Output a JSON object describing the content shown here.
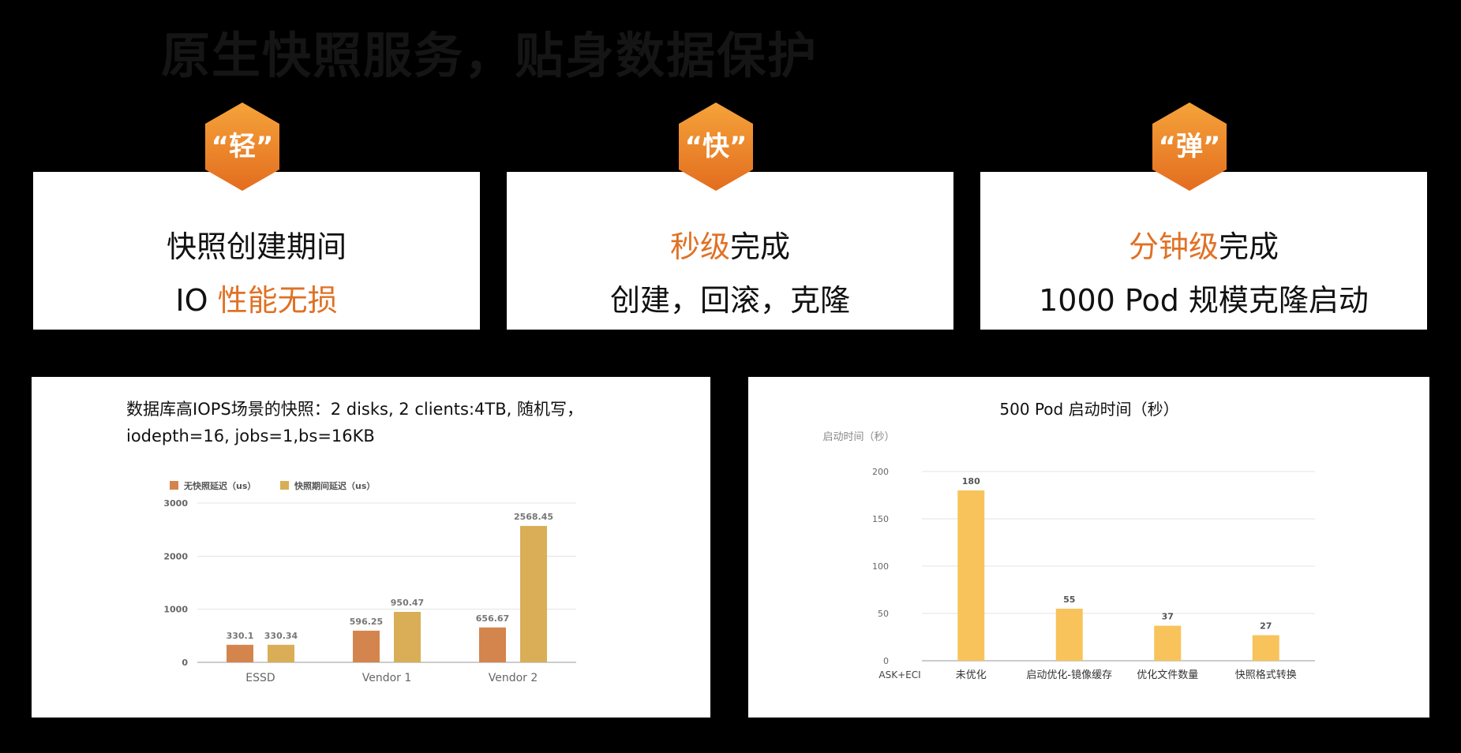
{
  "title": "原生快照服务，贴身数据保护",
  "colors": {
    "accent": "#e07125",
    "hex_top": "#f5a33a",
    "hex_bottom": "#e36d1f"
  },
  "cards": [
    {
      "badge": "“轻”",
      "line1": {
        "plain_before": "",
        "highlight": "",
        "plain_after": "快照创建期间"
      },
      "line2": {
        "plain_before": "IO ",
        "highlight": "性能无损",
        "plain_after": ""
      }
    },
    {
      "badge": "“快”",
      "line1": {
        "plain_before": "",
        "highlight": "秒级",
        "plain_after": "完成"
      },
      "line2": {
        "plain_before": "创建，回滚，克隆",
        "highlight": "",
        "plain_after": ""
      }
    },
    {
      "badge": "“弹”",
      "line1": {
        "plain_before": "",
        "highlight": "分钟级",
        "plain_after": "完成"
      },
      "line2": {
        "plain_before": "1000 Pod 规模克隆启动",
        "highlight": "",
        "plain_after": ""
      }
    }
  ],
  "chart_data": [
    {
      "type": "bar",
      "title": "数据库高IOPS场景的快照：2 disks, 2 clients:4TB, 随机写，",
      "subtitle": "iodepth=16, jobs=1,bs=16KB",
      "categories": [
        "ESSD",
        "Vendor 1",
        "Vendor 2"
      ],
      "series": [
        {
          "name": "无快照延迟（us）",
          "color": "#d4854d",
          "values": [
            330.1,
            596.25,
            656.67
          ]
        },
        {
          "name": "快照期间延迟（us）",
          "color": "#d9ae56",
          "values": [
            330.34,
            950.47,
            2568.45
          ]
        }
      ],
      "value_labels": [
        [
          "330.1",
          "596.25",
          "656.67"
        ],
        [
          "330.34",
          "950.47",
          "2568.45"
        ]
      ],
      "ylim": [
        0,
        3000
      ],
      "yticks": [
        0,
        1000,
        2000,
        3000
      ],
      "grid": true,
      "legend": "top-left"
    },
    {
      "type": "bar",
      "title": "500 Pod 启动时间（秒）",
      "ylabel": "启动时间（秒）",
      "xlabel": "ASK+ECI",
      "categories": [
        "未优化",
        "启动优化-镜像缓存",
        "优化文件数量",
        "快照格式转换"
      ],
      "series": [
        {
          "color": "#f8c35a",
          "values": [
            180,
            55,
            37,
            27
          ]
        }
      ],
      "ylim": [
        0,
        200
      ],
      "yticks": [
        0,
        50,
        100,
        150,
        200
      ],
      "grid": true
    }
  ]
}
